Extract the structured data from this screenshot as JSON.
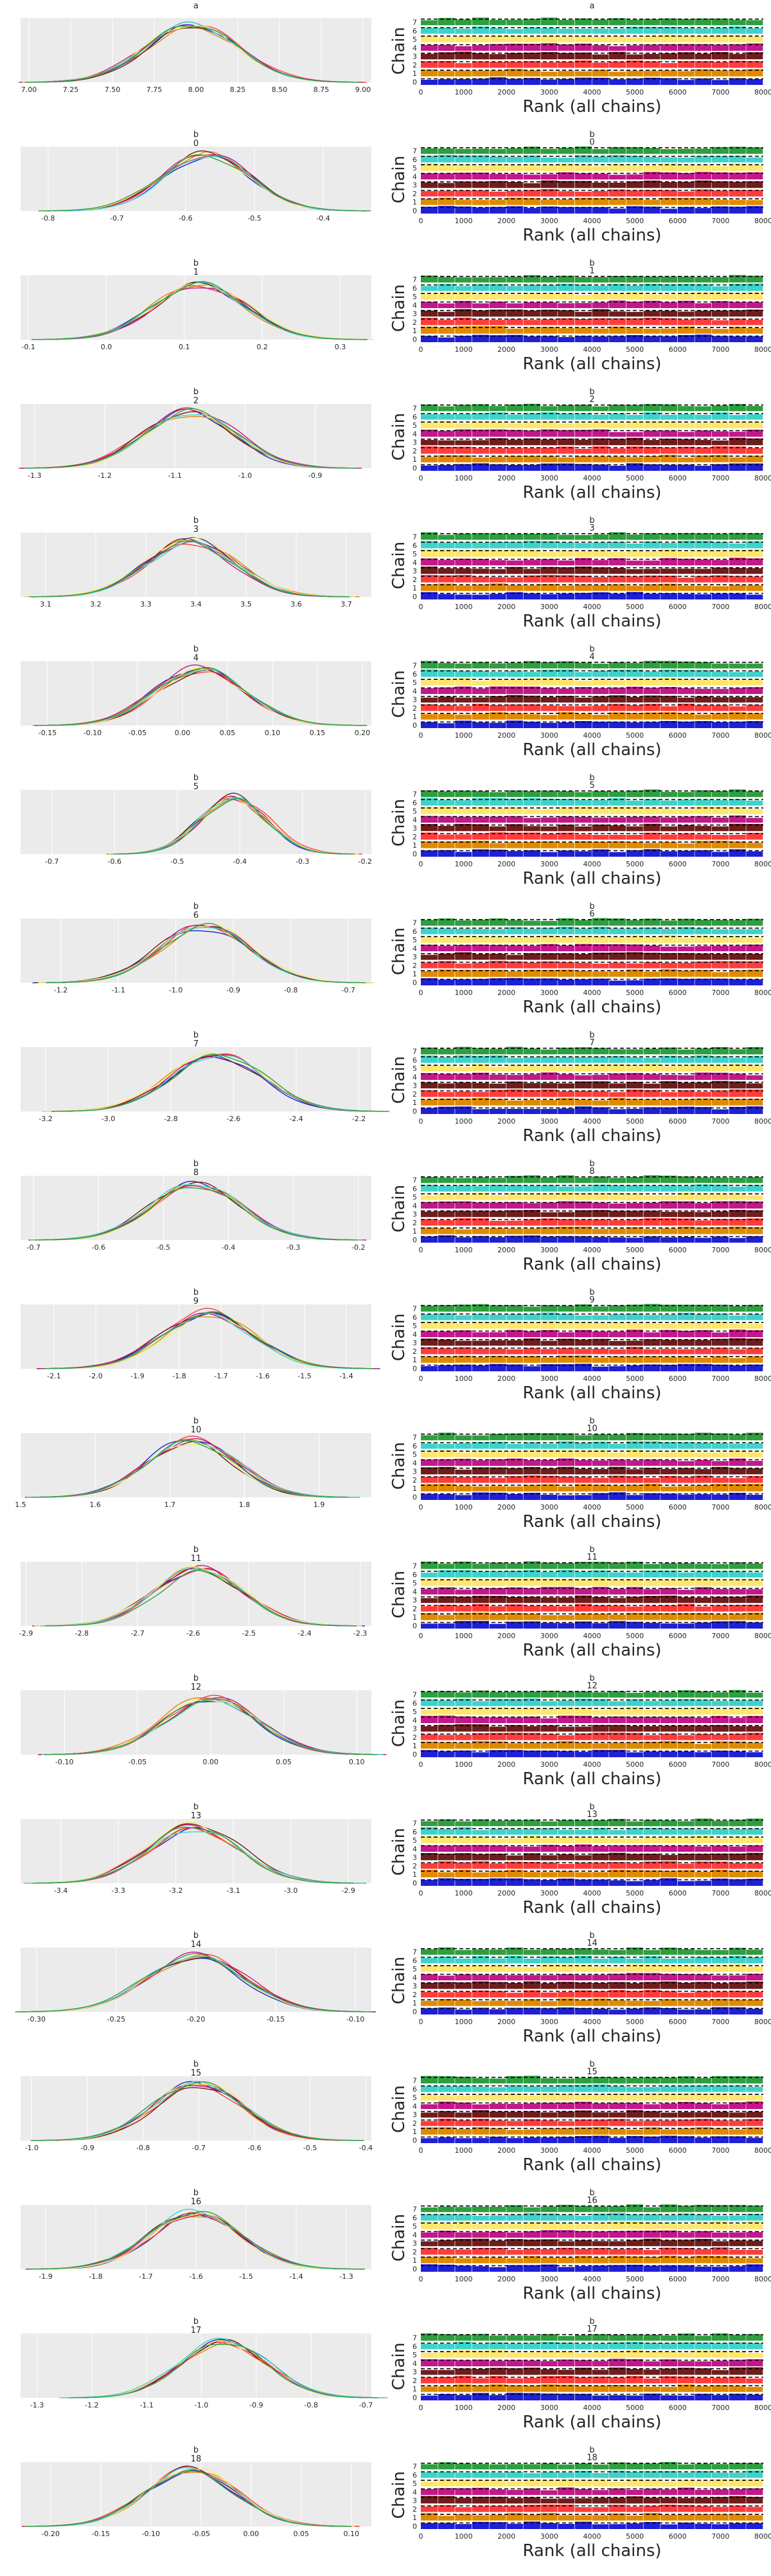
{
  "chart_data": {
    "type": "line",
    "rank_plot": {
      "xlabel": "Rank (all chains)",
      "ylabel": "Chain",
      "xticks": [
        0,
        1000,
        2000,
        3000,
        4000,
        5000,
        6000,
        7000,
        8000
      ],
      "yticks": [
        0,
        1,
        2,
        3,
        4,
        5,
        6,
        7
      ],
      "xlim": [
        0,
        8000
      ]
    },
    "chain_colors": [
      "#1f1fd6",
      "#e08a00",
      "#ff3c3c",
      "#6e1d1d",
      "#c2188a",
      "#ffe66d",
      "#3fd2c9",
      "#2e9e3f"
    ],
    "panels": [
      {
        "title": "a",
        "sub": "",
        "xticks": [
          "7.00",
          "7.25",
          "7.50",
          "7.75",
          "8.00",
          "8.25",
          "8.50",
          "8.75",
          "9.00"
        ],
        "xlim": [
          6.95,
          9.05
        ],
        "mean": 7.98,
        "sd": 0.28
      },
      {
        "title": "b",
        "sub": "0",
        "xticks": [
          "-0.8",
          "-0.7",
          "-0.6",
          "-0.5",
          "-0.4"
        ],
        "xlim": [
          -0.84,
          -0.33
        ],
        "mean": -0.57,
        "sd": 0.065
      },
      {
        "title": "b",
        "sub": "1",
        "xticks": [
          "-0.1",
          "0.0",
          "0.1",
          "0.2",
          "0.3"
        ],
        "xlim": [
          -0.11,
          0.34
        ],
        "mean": 0.12,
        "sd": 0.06
      },
      {
        "title": "b",
        "sub": "2",
        "xticks": [
          "-1.3",
          "-1.2",
          "-1.1",
          "-1.0",
          "-0.9"
        ],
        "xlim": [
          -1.32,
          -0.82
        ],
        "mean": -1.08,
        "sd": 0.065
      },
      {
        "title": "b",
        "sub": "3",
        "xticks": [
          "3.1",
          "3.2",
          "3.3",
          "3.4",
          "3.5",
          "3.6",
          "3.7"
        ],
        "xlim": [
          3.05,
          3.75
        ],
        "mean": 3.39,
        "sd": 0.09
      },
      {
        "title": "b",
        "sub": "4",
        "xticks": [
          "-0.15",
          "-0.10",
          "-0.05",
          "0.00",
          "0.05",
          "0.10",
          "0.15",
          "0.20"
        ],
        "xlim": [
          -0.18,
          0.21
        ],
        "mean": 0.02,
        "sd": 0.05
      },
      {
        "title": "b",
        "sub": "5",
        "xticks": [
          "-0.7",
          "-0.6",
          "-0.5",
          "-0.4",
          "-0.3",
          "-0.2"
        ],
        "xlim": [
          -0.75,
          -0.19
        ],
        "mean": -0.41,
        "sd": 0.055
      },
      {
        "title": "b",
        "sub": "6",
        "xticks": [
          "-1.2",
          "-1.1",
          "-1.0",
          "-0.9",
          "-0.8",
          "-0.7"
        ],
        "xlim": [
          -1.27,
          -0.66
        ],
        "mean": -0.95,
        "sd": 0.08
      },
      {
        "title": "b",
        "sub": "7",
        "xticks": [
          "-3.2",
          "-3.0",
          "-2.8",
          "-2.6",
          "-2.4",
          "-2.2"
        ],
        "xlim": [
          -3.28,
          -2.16
        ],
        "mean": -2.65,
        "sd": 0.15
      },
      {
        "title": "b",
        "sub": "8",
        "xticks": [
          "-0.7",
          "-0.6",
          "-0.5",
          "-0.4",
          "-0.3",
          "-0.2"
        ],
        "xlim": [
          -0.72,
          -0.18
        ],
        "mean": -0.45,
        "sd": 0.07
      },
      {
        "title": "b",
        "sub": "9",
        "xticks": [
          "-2.1",
          "-2.0",
          "-1.9",
          "-1.8",
          "-1.7",
          "-1.6",
          "-1.5",
          "-1.4"
        ],
        "xlim": [
          -2.18,
          -1.34
        ],
        "mean": -1.73,
        "sd": 0.11
      },
      {
        "title": "b",
        "sub": "10",
        "xticks": [
          "1.5",
          "1.6",
          "1.7",
          "1.8",
          "1.9"
        ],
        "xlim": [
          1.5,
          1.97
        ],
        "mean": 1.73,
        "sd": 0.06
      },
      {
        "title": "b",
        "sub": "11",
        "xticks": [
          "-2.9",
          "-2.8",
          "-2.7",
          "-2.6",
          "-2.5",
          "-2.4",
          "-2.3"
        ],
        "xlim": [
          -2.91,
          -2.28
        ],
        "mean": -2.59,
        "sd": 0.08
      },
      {
        "title": "b",
        "sub": "12",
        "xticks": [
          "-0.10",
          "-0.05",
          "0.00",
          "0.05",
          "0.10"
        ],
        "xlim": [
          -0.13,
          0.11
        ],
        "mean": 0.0,
        "sd": 0.032
      },
      {
        "title": "b",
        "sub": "13",
        "xticks": [
          "-3.4",
          "-3.3",
          "-3.2",
          "-3.1",
          "-3.0",
          "-2.9"
        ],
        "xlim": [
          -3.47,
          -2.86
        ],
        "mean": -3.17,
        "sd": 0.08
      },
      {
        "title": "b",
        "sub": "14",
        "xticks": [
          "-0.30",
          "-0.25",
          "-0.20",
          "-0.15",
          "-0.10"
        ],
        "xlim": [
          -0.31,
          -0.09
        ],
        "mean": -0.2,
        "sd": 0.03
      },
      {
        "title": "b",
        "sub": "15",
        "xticks": [
          "-1.0",
          "-0.9",
          "-0.8",
          "-0.7",
          "-0.6",
          "-0.5",
          "-0.4"
        ],
        "xlim": [
          -1.02,
          -0.39
        ],
        "mean": -0.7,
        "sd": 0.08
      },
      {
        "title": "b",
        "sub": "16",
        "xticks": [
          "-1.9",
          "-1.8",
          "-1.7",
          "-1.6",
          "-1.5",
          "-1.4",
          "-1.3"
        ],
        "xlim": [
          -1.95,
          -1.25
        ],
        "mean": -1.6,
        "sd": 0.09
      },
      {
        "title": "b",
        "sub": "17",
        "xticks": [
          "-1.3",
          "-1.2",
          "-1.1",
          "-1.0",
          "-0.9",
          "-0.8",
          "-0.7"
        ],
        "xlim": [
          -1.33,
          -0.69
        ],
        "mean": -0.96,
        "sd": 0.08
      },
      {
        "title": "b",
        "sub": "18",
        "xticks": [
          "-0.20",
          "-0.15",
          "-0.10",
          "-0.05",
          "0.00",
          "0.05",
          "0.10"
        ],
        "xlim": [
          -0.23,
          0.12
        ],
        "mean": -0.06,
        "sd": 0.045
      }
    ]
  }
}
